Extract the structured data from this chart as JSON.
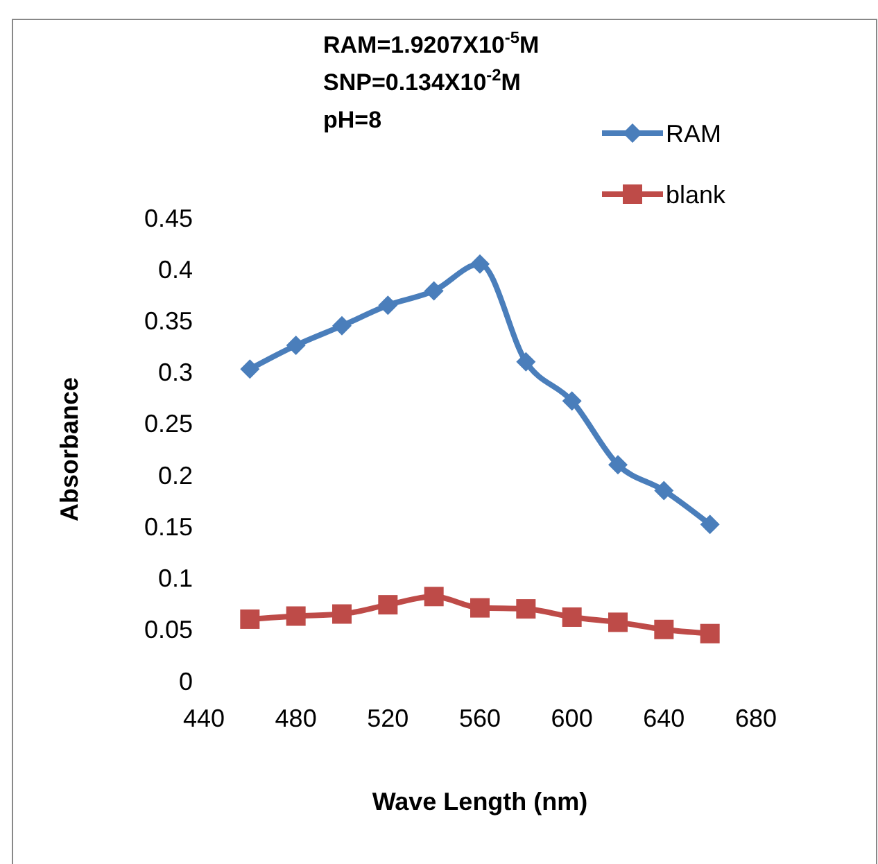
{
  "chart_data": {
    "type": "line",
    "xlabel": "Wave Length (nm)",
    "ylabel": "Absorbance",
    "annotations": [
      "RAM=1.9207X10$^{-5}$M",
      "SNP=0.134X10$^{-2}$M",
      "pH=8"
    ],
    "x": [
      460,
      480,
      500,
      520,
      540,
      560,
      580,
      600,
      620,
      640,
      660
    ],
    "series": [
      {
        "name": "RAM",
        "color": "#4a7ebb",
        "marker": "diamond",
        "values": [
          0.303,
          0.326,
          0.345,
          0.365,
          0.379,
          0.405,
          0.31,
          0.272,
          0.21,
          0.185,
          0.152
        ]
      },
      {
        "name": "blank",
        "color": "#be4b48",
        "marker": "square",
        "values": [
          0.06,
          0.063,
          0.065,
          0.074,
          0.082,
          0.071,
          0.07,
          0.062,
          0.057,
          0.05,
          0.046
        ]
      }
    ],
    "xlim": [
      440,
      680
    ],
    "xticks": [
      440,
      480,
      520,
      560,
      600,
      640,
      680
    ],
    "ylim": [
      0,
      0.45
    ],
    "yticks": [
      0,
      0.05,
      0.1,
      0.15,
      0.2,
      0.25,
      0.3,
      0.35,
      0.4,
      0.45
    ],
    "grid": false,
    "legend": "top right",
    "line_style": "solid"
  }
}
